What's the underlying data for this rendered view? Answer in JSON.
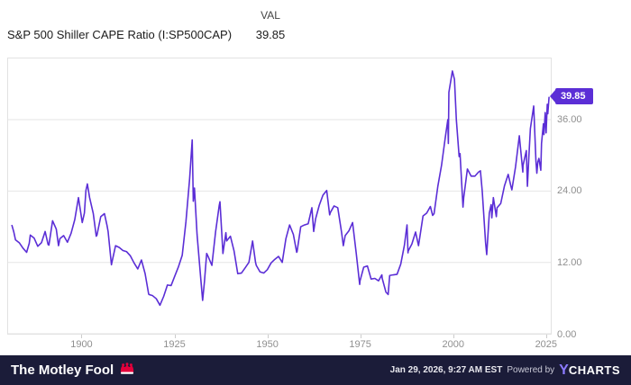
{
  "header": {
    "title": "S&P 500 Shiller CAPE Ratio (I:SP500CAP)",
    "val_label": "VAL",
    "val_value": "39.85"
  },
  "badge": {
    "label": "39.85"
  },
  "colors": {
    "line": "#5b2ed6",
    "badge": "#5b2ed6",
    "grid": "#e6e6e6",
    "axis_text": "#8f8f8f",
    "footer_bg": "#1b1c39",
    "fool_red": "#e4003b",
    "ycharts_purple": "#8c7bff"
  },
  "chart_data": {
    "type": "line",
    "title": "S&P 500 Shiller CAPE Ratio",
    "series_name": "S&P 500 Shiller CAPE Ratio (I:SP500CAP)",
    "legend_position": "none",
    "grid": "horizontal",
    "x_range": [
      1880,
      2026.5
    ],
    "y_range": [
      0,
      46.3
    ],
    "last_value": 39.85,
    "y_ticks": [
      {
        "value": 0,
        "label": "0.00"
      },
      {
        "value": 12,
        "label": "12.00"
      },
      {
        "value": 24,
        "label": "24.00"
      },
      {
        "value": 36,
        "label": "36.00"
      }
    ],
    "x_ticks": [
      {
        "value": 1900,
        "label": "1900"
      },
      {
        "value": 1925,
        "label": "1925"
      },
      {
        "value": 1950,
        "label": "1950"
      },
      {
        "value": 1975,
        "label": "1975"
      },
      {
        "value": 2000,
        "label": "2000"
      },
      {
        "value": 2025,
        "label": "2025"
      }
    ],
    "points": [
      [
        1881,
        18.3
      ],
      [
        1881.5,
        17.2
      ],
      [
        1882,
        15.8
      ],
      [
        1883,
        15.3
      ],
      [
        1884,
        14.4
      ],
      [
        1885,
        13.7
      ],
      [
        1885.7,
        15.2
      ],
      [
        1886,
        16.6
      ],
      [
        1887,
        16.1
      ],
      [
        1888,
        14.7
      ],
      [
        1889,
        15.3
      ],
      [
        1890,
        17.2
      ],
      [
        1890.8,
        15.0
      ],
      [
        1891,
        14.9
      ],
      [
        1892,
        19.0
      ],
      [
        1893,
        17.6
      ],
      [
        1893.6,
        14.8
      ],
      [
        1894,
        16.0
      ],
      [
        1895,
        16.5
      ],
      [
        1896,
        15.4
      ],
      [
        1897,
        16.9
      ],
      [
        1898,
        19.2
      ],
      [
        1899,
        22.9
      ],
      [
        1900,
        18.7
      ],
      [
        1900.6,
        20.3
      ],
      [
        1901,
        24.1
      ],
      [
        1901.4,
        25.2
      ],
      [
        1902,
        22.9
      ],
      [
        1903,
        20.2
      ],
      [
        1903.8,
        16.4
      ],
      [
        1904,
        16.6
      ],
      [
        1905,
        19.7
      ],
      [
        1906,
        20.2
      ],
      [
        1906.7,
        18.2
      ],
      [
        1907,
        17.2
      ],
      [
        1907.9,
        11.6
      ],
      [
        1908,
        11.9
      ],
      [
        1909,
        14.8
      ],
      [
        1910,
        14.5
      ],
      [
        1911,
        14.0
      ],
      [
        1912,
        13.8
      ],
      [
        1913,
        13.1
      ],
      [
        1914,
        11.9
      ],
      [
        1915,
        10.9
      ],
      [
        1916,
        12.4
      ],
      [
        1917,
        10.1
      ],
      [
        1917.9,
        6.8
      ],
      [
        1918,
        6.6
      ],
      [
        1919,
        6.4
      ],
      [
        1920,
        5.9
      ],
      [
        1921,
        4.8
      ],
      [
        1922,
        6.3
      ],
      [
        1923,
        8.2
      ],
      [
        1924,
        8.1
      ],
      [
        1925,
        9.7
      ],
      [
        1926,
        11.3
      ],
      [
        1927,
        13.2
      ],
      [
        1928,
        18.8
      ],
      [
        1929,
        26.0
      ],
      [
        1929.7,
        32.6
      ],
      [
        1930,
        22.3
      ],
      [
        1930.3,
        24.5
      ],
      [
        1931,
        16.7
      ],
      [
        1932,
        9.3
      ],
      [
        1932.5,
        5.6
      ],
      [
        1933,
        8.7
      ],
      [
        1933.6,
        13.5
      ],
      [
        1934,
        13.0
      ],
      [
        1935,
        11.5
      ],
      [
        1936,
        17.1
      ],
      [
        1937,
        21.6
      ],
      [
        1937.2,
        22.2
      ],
      [
        1938,
        13.5
      ],
      [
        1938.8,
        17.0
      ],
      [
        1939,
        15.6
      ],
      [
        1940,
        16.4
      ],
      [
        1941,
        13.9
      ],
      [
        1942,
        10.1
      ],
      [
        1943,
        10.2
      ],
      [
        1944,
        11.1
      ],
      [
        1945,
        12.0
      ],
      [
        1946,
        15.6
      ],
      [
        1946.8,
        12.0
      ],
      [
        1947,
        11.5
      ],
      [
        1948,
        10.4
      ],
      [
        1949,
        10.2
      ],
      [
        1950,
        10.8
      ],
      [
        1951,
        11.9
      ],
      [
        1952,
        12.5
      ],
      [
        1953,
        13.0
      ],
      [
        1954,
        12.0
      ],
      [
        1955,
        16.0
      ],
      [
        1956,
        18.3
      ],
      [
        1957,
        16.7
      ],
      [
        1957.9,
        13.7
      ],
      [
        1958,
        13.8
      ],
      [
        1959,
        18.0
      ],
      [
        1960,
        18.3
      ],
      [
        1961,
        18.5
      ],
      [
        1962,
        21.2
      ],
      [
        1962.5,
        17.2
      ],
      [
        1963,
        19.3
      ],
      [
        1964,
        21.6
      ],
      [
        1965,
        23.3
      ],
      [
        1966,
        24.1
      ],
      [
        1966.8,
        20.0
      ],
      [
        1967,
        20.4
      ],
      [
        1968,
        21.5
      ],
      [
        1969,
        21.2
      ],
      [
        1970,
        17.1
      ],
      [
        1970.5,
        14.8
      ],
      [
        1971,
        16.5
      ],
      [
        1972,
        17.3
      ],
      [
        1973,
        18.7
      ],
      [
        1974,
        13.5
      ],
      [
        1974.9,
        8.3
      ],
      [
        1975,
        8.9
      ],
      [
        1976,
        11.2
      ],
      [
        1977,
        11.4
      ],
      [
        1978,
        9.2
      ],
      [
        1979,
        9.3
      ],
      [
        1980,
        8.9
      ],
      [
        1980.9,
        9.9
      ],
      [
        1981,
        9.3
      ],
      [
        1982,
        7.0
      ],
      [
        1982.6,
        6.6
      ],
      [
        1983,
        9.8
      ],
      [
        1984,
        9.9
      ],
      [
        1985,
        10.0
      ],
      [
        1986,
        11.7
      ],
      [
        1987,
        14.9
      ],
      [
        1987.7,
        18.3
      ],
      [
        1987.95,
        13.6
      ],
      [
        1988,
        13.9
      ],
      [
        1989,
        15.1
      ],
      [
        1990,
        17.1
      ],
      [
        1990.8,
        14.8
      ],
      [
        1991,
        15.6
      ],
      [
        1992,
        19.8
      ],
      [
        1993,
        20.3
      ],
      [
        1994,
        21.4
      ],
      [
        1994.6,
        19.9
      ],
      [
        1995,
        20.2
      ],
      [
        1996,
        24.8
      ],
      [
        1997,
        28.3
      ],
      [
        1998,
        32.9
      ],
      [
        1998.7,
        36.0
      ],
      [
        1998.85,
        32.0
      ],
      [
        1999,
        40.6
      ],
      [
        1999.95,
        44.2
      ],
      [
        2000.5,
        42.8
      ],
      [
        2001,
        36.0
      ],
      [
        2001.75,
        29.8
      ],
      [
        2002,
        30.3
      ],
      [
        2002.8,
        21.3
      ],
      [
        2003,
        22.9
      ],
      [
        2004,
        27.7
      ],
      [
        2005,
        26.5
      ],
      [
        2006,
        26.5
      ],
      [
        2007,
        27.2
      ],
      [
        2007.5,
        27.4
      ],
      [
        2008,
        24.0
      ],
      [
        2008.9,
        15.4
      ],
      [
        2009.2,
        13.3
      ],
      [
        2009.9,
        20.3
      ],
      [
        2010.4,
        21.7
      ],
      [
        2010.6,
        19.5
      ],
      [
        2011,
        22.9
      ],
      [
        2011.8,
        19.7
      ],
      [
        2012,
        21.2
      ],
      [
        2013,
        21.9
      ],
      [
        2014,
        24.9
      ],
      [
        2015,
        26.8
      ],
      [
        2015.7,
        24.9
      ],
      [
        2016,
        24.2
      ],
      [
        2017,
        28.1
      ],
      [
        2018,
        33.3
      ],
      [
        2018.95,
        27.2
      ],
      [
        2019,
        28.3
      ],
      [
        2019.9,
        30.8
      ],
      [
        2020.2,
        24.8
      ],
      [
        2020.6,
        30.0
      ],
      [
        2021,
        34.5
      ],
      [
        2021.9,
        38.3
      ],
      [
        2022.5,
        29.0
      ],
      [
        2022.75,
        27.0
      ],
      [
        2023,
        28.9
      ],
      [
        2023.3,
        29.5
      ],
      [
        2023.8,
        27.5
      ],
      [
        2024,
        32.0
      ],
      [
        2024.5,
        35.3
      ],
      [
        2024.65,
        33.5
      ],
      [
        2025,
        37.2
      ],
      [
        2025.25,
        33.8
      ],
      [
        2025.55,
        38.6
      ],
      [
        2025.7,
        37.0
      ],
      [
        2026.05,
        39.85
      ]
    ]
  },
  "footer": {
    "brand": "The Motley Fool",
    "timestamp": "Jan 29, 2026, 9:27 AM EST",
    "powered_by": "Powered by",
    "ycharts_y": "Y",
    "ycharts_rest": "CHARTS"
  }
}
